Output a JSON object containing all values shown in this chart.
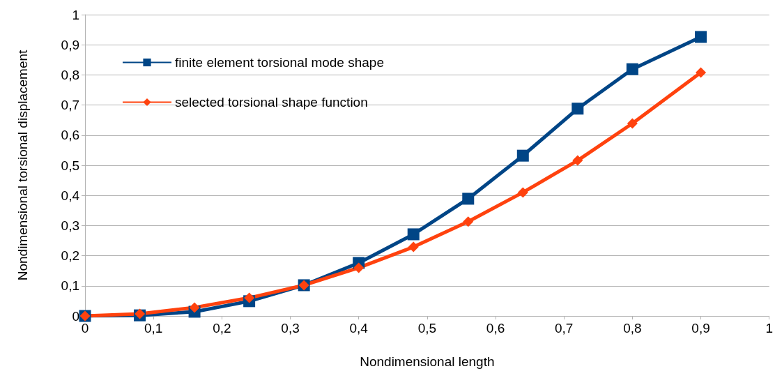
{
  "chart_data": {
    "type": "line",
    "xlabel": "Nondimensional length",
    "ylabel": "Nondimensional torsional displacement",
    "x": [
      0,
      0.08,
      0.16,
      0.24,
      0.32,
      0.4,
      0.48,
      0.56,
      0.64,
      0.72,
      0.8,
      0.9
    ],
    "series": [
      {
        "name": "finite element torsional mode shape",
        "color": "#004586",
        "marker": "square",
        "values": [
          0,
          0.002,
          0.014,
          0.049,
          0.102,
          0.176,
          0.271,
          0.389,
          0.532,
          0.688,
          0.819,
          0.926
        ]
      },
      {
        "name": "selected torsional shape function",
        "color": "#ff420e",
        "marker": "diamond",
        "values": [
          0,
          0.007,
          0.028,
          0.06,
          0.102,
          0.16,
          0.229,
          0.313,
          0.41,
          0.516,
          0.639,
          0.808
        ]
      }
    ],
    "xlim": [
      0,
      1
    ],
    "ylim": [
      0,
      1
    ],
    "xticks": [
      0,
      {
        "value": 0.1,
        "label": "0,1"
      },
      {
        "value": 0.2,
        "label": "0,2"
      },
      {
        "value": 0.3,
        "label": "0,3"
      },
      {
        "value": 0.4,
        "label": "0,4"
      },
      {
        "value": 0.5,
        "label": "0,5"
      },
      {
        "value": 0.6,
        "label": "0,6"
      },
      {
        "value": 0.7,
        "label": "0,7"
      },
      {
        "value": 0.8,
        "label": "0,8"
      },
      {
        "value": 0.9,
        "label": "0,9"
      },
      1
    ],
    "yticks": [
      0,
      {
        "value": 0.1,
        "label": "0,1"
      },
      {
        "value": 0.2,
        "label": "0,2"
      },
      {
        "value": 0.3,
        "label": "0,3"
      },
      {
        "value": 0.4,
        "label": "0,4"
      },
      {
        "value": 0.5,
        "label": "0,5"
      },
      {
        "value": 0.6,
        "label": "0,6"
      },
      {
        "value": 0.7,
        "label": "0,7"
      },
      {
        "value": 0.8,
        "label": "0,8"
      },
      {
        "value": 0.9,
        "label": "0,9"
      },
      1
    ],
    "grid": "y",
    "legend": "top left",
    "line_style": "solid"
  }
}
